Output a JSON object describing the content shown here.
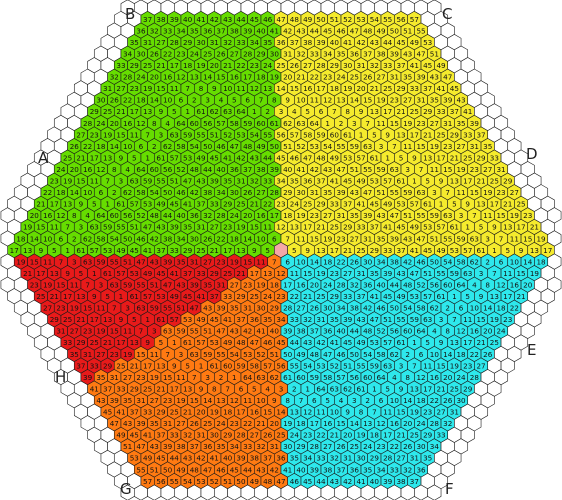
{
  "title": "",
  "corners": [
    {
      "id": "A",
      "text": "A"
    },
    {
      "id": "B",
      "text": "B"
    },
    {
      "id": "C",
      "text": "C"
    },
    {
      "id": "D",
      "text": "D"
    },
    {
      "id": "E",
      "text": "E"
    },
    {
      "id": "F",
      "text": "F"
    },
    {
      "id": "G",
      "text": "G"
    },
    {
      "id": "H",
      "text": "H"
    }
  ],
  "board": {
    "grid_radius_hexes": 22,
    "colored_radius_hexes": 20,
    "center_hex_color": "#f4a7a7",
    "outline_color": "#1a1a1a",
    "background_hex_color": "#ffffff",
    "sectors": [
      {
        "id": "green",
        "quadrant": "upper-left",
        "color": "#66dd00",
        "label_color": "#66dd00"
      },
      {
        "id": "yellow",
        "quadrant": "upper-right",
        "color": "#f5eb2d",
        "label_color": "#f5eb2d"
      },
      {
        "id": "red",
        "quadrant": "lower-left",
        "color": "#e81a1a",
        "label_color": "#e81a1a"
      },
      {
        "id": "orange",
        "quadrant": "lower-middle",
        "color": "#ff7a12",
        "label_color": "#ff7a12"
      },
      {
        "id": "cyan",
        "quadrant": "lower-right",
        "color": "#2ee8ec",
        "label_color": "#2ee8ec"
      }
    ],
    "numbering_note_visible_examples": [
      "1",
      "2",
      "3",
      "4",
      "5",
      "10",
      "20",
      "30",
      "40",
      "50",
      "60",
      "64"
    ]
  }
}
